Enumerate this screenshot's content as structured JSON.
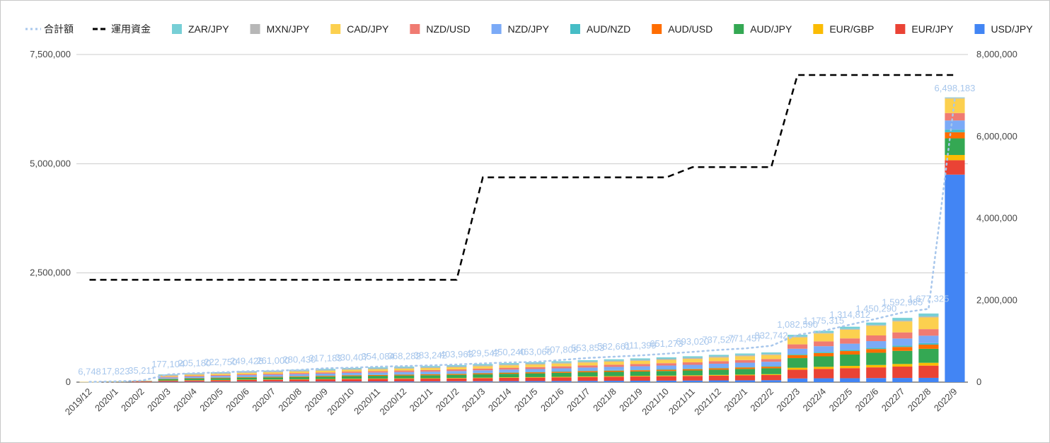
{
  "chart_data": {
    "type": "bar",
    "stacked": true,
    "categories": [
      "2019/12",
      "2020/1",
      "2020/2",
      "2020/3",
      "2020/4",
      "2020/5",
      "2020/6",
      "2020/7",
      "2020/8",
      "2020/9",
      "2020/10",
      "2020/11",
      "2020/12",
      "2021/1",
      "2021/2",
      "2021/3",
      "2021/4",
      "2021/5",
      "2021/6",
      "2021/7",
      "2021/8",
      "2021/9",
      "2021/10",
      "2021/11",
      "2021/12",
      "2022/1",
      "2022/2",
      "2022/3",
      "2022/4",
      "2022/5",
      "2022/6",
      "2022/7",
      "2022/8",
      "2022/9"
    ],
    "left_axis": {
      "ticks": [
        "0",
        "2,500,000",
        "5,000,000",
        "7,500,000"
      ],
      "ylim": [
        0,
        7500000
      ]
    },
    "right_axis": {
      "ticks": [
        "0",
        "2,000,000",
        "4,000,000",
        "6,000,000",
        "8,000,000"
      ],
      "ylim": [
        0,
        8000000
      ]
    },
    "legend_position": "top",
    "series_bars": [
      {
        "name": "USD/JPY",
        "color": "#4285f4",
        "values": [
          0,
          0,
          0,
          8000,
          9000,
          10000,
          11000,
          12000,
          13000,
          14000,
          15000,
          16000,
          17000,
          18000,
          19000,
          21000,
          23000,
          25000,
          27000,
          29000,
          31000,
          33000,
          35000,
          37000,
          40000,
          42000,
          45000,
          85000,
          88000,
          90000,
          93000,
          96000,
          98000,
          4750000
        ]
      },
      {
        "name": "EUR/JPY",
        "color": "#ea4335",
        "values": [
          3000,
          7000,
          15000,
          25000,
          30000,
          35000,
          40000,
          42000,
          46000,
          50000,
          55000,
          58000,
          60000,
          62000,
          65000,
          70000,
          75000,
          78000,
          82000,
          88000,
          92000,
          96000,
          100000,
          104000,
          108000,
          112000,
          118000,
          200000,
          215000,
          230000,
          245000,
          260000,
          280000,
          330000
        ]
      },
      {
        "name": "EUR/GBP",
        "color": "#fbbc04",
        "values": [
          0,
          0,
          0,
          5000,
          6000,
          6000,
          7000,
          7000,
          8000,
          8000,
          9000,
          9000,
          10000,
          10000,
          11000,
          11000,
          12000,
          12000,
          13000,
          14000,
          14000,
          15000,
          15000,
          16000,
          17000,
          18000,
          19000,
          45000,
          48000,
          52000,
          55000,
          60000,
          65000,
          120000
        ]
      },
      {
        "name": "AUD/JPY",
        "color": "#34a853",
        "values": [
          1500,
          4000,
          8000,
          30000,
          35000,
          40000,
          45000,
          48000,
          52000,
          55000,
          60000,
          62000,
          65000,
          68000,
          72000,
          78000,
          82000,
          86000,
          90000,
          95000,
          98000,
          100000,
          105000,
          110000,
          120000,
          130000,
          135000,
          220000,
          240000,
          260000,
          280000,
          300000,
          320000,
          380000
        ]
      },
      {
        "name": "AUD/USD",
        "color": "#ff6d01",
        "values": [
          0,
          0,
          0,
          10000,
          12000,
          13000,
          14000,
          15000,
          16000,
          17000,
          18000,
          19000,
          20000,
          21000,
          22000,
          23000,
          24000,
          25000,
          26000,
          27000,
          28000,
          29000,
          30000,
          31000,
          33000,
          35000,
          37000,
          70000,
          75000,
          80000,
          85000,
          90000,
          95000,
          140000
        ]
      },
      {
        "name": "AUD/NZD",
        "color": "#46bdc6",
        "values": [
          0,
          0,
          0,
          5000,
          6000,
          6000,
          7000,
          7000,
          8000,
          8000,
          9000,
          9000,
          10000,
          10000,
          11000,
          11000,
          12000,
          12000,
          13000,
          13000,
          14000,
          14000,
          15000,
          15000,
          16000,
          16000,
          17000,
          25000,
          27000,
          29000,
          31000,
          33000,
          35000,
          60000
        ]
      },
      {
        "name": "NZD/JPY",
        "color": "#7baaf7",
        "values": [
          1000,
          3000,
          5000,
          25000,
          30000,
          33000,
          36000,
          38000,
          40000,
          43000,
          46000,
          48000,
          50000,
          52000,
          54000,
          57000,
          60000,
          62000,
          65000,
          68000,
          72000,
          76000,
          80000,
          84000,
          88000,
          92000,
          96000,
          120000,
          130000,
          140000,
          150000,
          160000,
          170000,
          210000
        ]
      },
      {
        "name": "NZD/USD",
        "color": "#f07b72",
        "values": [
          0,
          0,
          0,
          15000,
          18000,
          20000,
          22000,
          24000,
          26000,
          28000,
          30000,
          32000,
          34000,
          36000,
          38000,
          40000,
          42000,
          44000,
          46000,
          48000,
          50000,
          52000,
          54000,
          56000,
          58000,
          60000,
          62000,
          100000,
          110000,
          120000,
          130000,
          140000,
          150000,
          170000
        ]
      },
      {
        "name": "CAD/JPY",
        "color": "#fcd04f",
        "values": [
          1248,
          3823,
          7211,
          20000,
          24000,
          28000,
          31000,
          33000,
          35000,
          38000,
          40000,
          42000,
          44000,
          46000,
          48000,
          52000,
          56000,
          60000,
          64000,
          67000,
          70000,
          73000,
          76000,
          80000,
          84000,
          88000,
          92000,
          160000,
          180000,
          200000,
          220000,
          250000,
          270000,
          330000
        ]
      },
      {
        "name": "MXN/JPY",
        "color": "#b7b7b7",
        "values": [
          0,
          0,
          0,
          20000,
          20180,
          19750,
          21428,
          21000,
          21000,
          21183,
          22407,
          21084,
          21282,
          22242,
          22963,
          23542,
          23240,
          24060,
          22808,
          22853,
          22661,
          23399,
          24273,
          25020,
          25527,
          26457,
          21742,
          17590,
          16315,
          17812,
          20290,
          21985,
          22325,
          18183
        ]
      },
      {
        "name": "ZAR/JPY",
        "color": "#77cfd6",
        "values": [
          0,
          0,
          0,
          14104,
          15000,
          16000,
          17000,
          18000,
          19000,
          20000,
          21000,
          22000,
          23000,
          24000,
          25000,
          26000,
          27000,
          28000,
          29000,
          30000,
          31000,
          32000,
          33000,
          34000,
          35000,
          36000,
          37000,
          40000,
          45000,
          50000,
          55000,
          60000,
          65000,
          10000
        ]
      }
    ],
    "series_lines": [
      {
        "name": "合計額",
        "axis": "left",
        "style": "dotted",
        "color": "#a8c7ec",
        "values": [
          6748,
          17823,
          35211,
          177104,
          205180,
          222750,
          249428,
          261000,
          280430,
          317183,
          330407,
          354084,
          368282,
          383242,
          403963,
          429542,
          450240,
          463060,
          507808,
          553853,
          582661,
          611399,
          651273,
          693020,
          737527,
          771457,
          832742,
          1082590,
          1175315,
          1314812,
          1450290,
          1592985,
          1677325,
          6498183
        ],
        "labels": [
          "6,748",
          "17,823",
          "35,211",
          "177,104",
          "205,180",
          "222,750",
          "249,428",
          "261,000",
          "280,430",
          "317,183",
          "330,407",
          "354,084",
          "368,282",
          "383,242",
          "403,963",
          "429,542",
          "450,240",
          "463,060",
          "507,808",
          "553,853",
          "582,661",
          "611,399",
          "651,273",
          "693,020",
          "737,527",
          "771,457",
          "832,742",
          "1,082,590",
          "1,175,315",
          "1,314,812",
          "1,450,290",
          "1,592,985",
          "1,677,325",
          "6,498,183"
        ]
      },
      {
        "name": "運用資金",
        "axis": "right",
        "style": "dashed",
        "color": "#000000",
        "values": [
          2500000,
          2500000,
          2500000,
          2500000,
          2500000,
          2500000,
          2500000,
          2500000,
          2500000,
          2500000,
          2500000,
          2500000,
          2500000,
          2500000,
          2500000,
          5000000,
          5000000,
          5000000,
          5000000,
          5000000,
          5000000,
          5000000,
          5000000,
          5250000,
          5250000,
          5250000,
          5250000,
          7500000,
          7500000,
          7500000,
          7500000,
          7500000,
          7500000,
          7500000
        ]
      }
    ],
    "legend": [
      "合計額",
      "運用資金",
      "ZAR/JPY",
      "MXN/JPY",
      "CAD/JPY",
      "NZD/USD",
      "NZD/JPY",
      "AUD/NZD",
      "AUD/USD",
      "AUD/JPY",
      "EUR/GBP",
      "EUR/JPY",
      "USD/JPY"
    ],
    "grid": true
  }
}
